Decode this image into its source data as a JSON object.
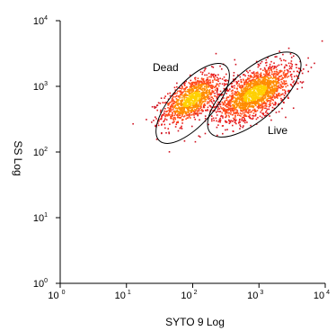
{
  "chart_data": {
    "type": "scatter",
    "x_scale": "log",
    "y_scale": "log",
    "xlabel": "SYTO 9 Log",
    "ylabel": "SS Log",
    "xlim": [
      1,
      10000
    ],
    "ylim": [
      1,
      10000
    ],
    "x_ticks": [
      {
        "base": "10",
        "exp": "0"
      },
      {
        "base": "10",
        "exp": "1"
      },
      {
        "base": "10",
        "exp": "2"
      },
      {
        "base": "10",
        "exp": "3"
      },
      {
        "base": "10",
        "exp": "4"
      }
    ],
    "y_ticks": [
      {
        "base": "10",
        "exp": "0"
      },
      {
        "base": "10",
        "exp": "1"
      },
      {
        "base": "10",
        "exp": "2"
      },
      {
        "base": "10",
        "exp": "3"
      },
      {
        "base": "10",
        "exp": "4"
      }
    ],
    "grid": false,
    "point_colors": [
      "#ffd000",
      "#ff8c00",
      "#ff4a1a",
      "#e81b1b",
      "#d0101e"
    ],
    "gates": [
      {
        "name": "Dead",
        "center_x": 100,
        "center_y": 550,
        "x_range": [
          32,
          320
        ],
        "y_range": [
          180,
          2500
        ]
      },
      {
        "name": "Live",
        "center_x": 850,
        "center_y": 750,
        "x_range": [
          180,
          3800
        ],
        "y_range": [
          190,
          2800
        ]
      }
    ],
    "populations": [
      {
        "gate": "Dead",
        "center_x": 95,
        "center_y": 650,
        "spread_log_x": 0.22,
        "spread_log_y": 0.2,
        "count": 1100
      },
      {
        "gate": "Live",
        "center_x": 850,
        "center_y": 800,
        "spread_log_x": 0.28,
        "spread_log_y": 0.22,
        "count": 1800
      }
    ]
  }
}
